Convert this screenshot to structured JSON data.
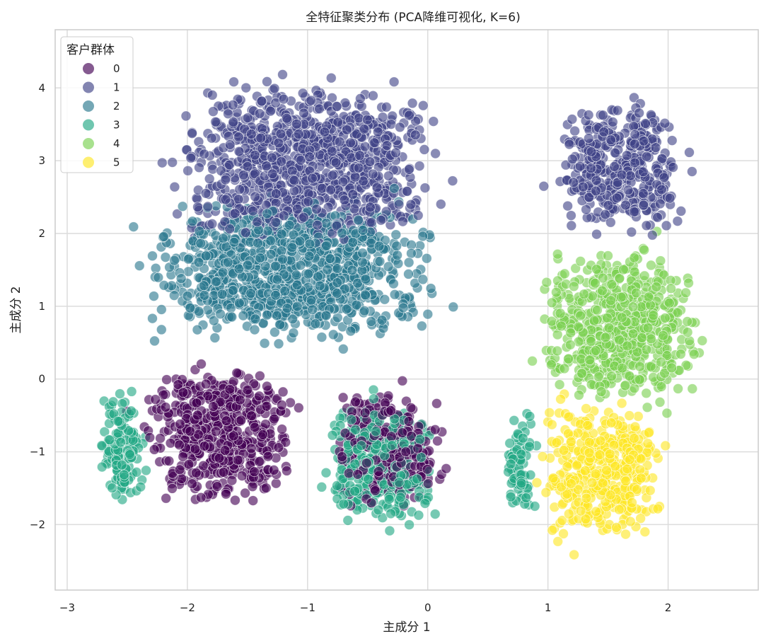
{
  "chart_data": {
    "type": "scatter",
    "title": "全特征聚类分布 (PCA降维可视化, K=6)",
    "xlabel": "主成分 1",
    "ylabel": "主成分 2",
    "xlim": [
      -3.1,
      2.75
    ],
    "ylim": [
      -2.9,
      4.8
    ],
    "xticks": [
      -3,
      -2,
      -1,
      0,
      1,
      2
    ],
    "yticks": [
      -2,
      -1,
      0,
      1,
      2,
      3,
      4
    ],
    "xtick_labels": [
      "−3",
      "−2",
      "−1",
      "0",
      "1",
      "2"
    ],
    "ytick_labels": [
      "−2",
      "−1",
      "0",
      "1",
      "2",
      "3",
      "4"
    ],
    "grid": true,
    "legend": {
      "title": "客户群体",
      "placement": "top-left"
    },
    "series": [
      {
        "name": "0",
        "color": "#440154",
        "regions": [
          {
            "x_range": [
              -2.55,
              -0.9
            ],
            "y_range": [
              -2.0,
              0.5
            ]
          },
          {
            "x_range": [
              -0.9,
              0.25
            ],
            "y_range": [
              -2.0,
              0.1
            ]
          }
        ]
      },
      {
        "name": "1",
        "color": "#414487",
        "regions": [
          {
            "x_range": [
              -2.4,
              0.4
            ],
            "y_range": [
              1.5,
              4.4
            ]
          },
          {
            "x_range": [
              0.9,
              2.3
            ],
            "y_range": [
              1.7,
              4.1
            ]
          }
        ]
      },
      {
        "name": "2",
        "color": "#2a788e",
        "regions": [
          {
            "x_range": [
              -2.7,
              0.45
            ],
            "y_range": [
              0.2,
              2.8
            ]
          }
        ]
      },
      {
        "name": "3",
        "color": "#22a884",
        "regions": [
          {
            "x_range": [
              -2.8,
              -2.3
            ],
            "y_range": [
              -2.0,
              0.1
            ]
          },
          {
            "x_range": [
              -1.0,
              0.2
            ],
            "y_range": [
              -2.3,
              0.0
            ]
          },
          {
            "x_range": [
              0.6,
              0.95
            ],
            "y_range": [
              -2.1,
              -0.3
            ]
          }
        ]
      },
      {
        "name": "4",
        "color": "#7ad151",
        "regions": [
          {
            "x_range": [
              0.75,
              2.45
            ],
            "y_range": [
              -0.7,
              2.2
            ]
          }
        ]
      },
      {
        "name": "5",
        "color": "#fde725",
        "regions": [
          {
            "x_range": [
              0.8,
              2.1
            ],
            "y_range": [
              -2.5,
              0.0
            ]
          }
        ]
      }
    ]
  }
}
